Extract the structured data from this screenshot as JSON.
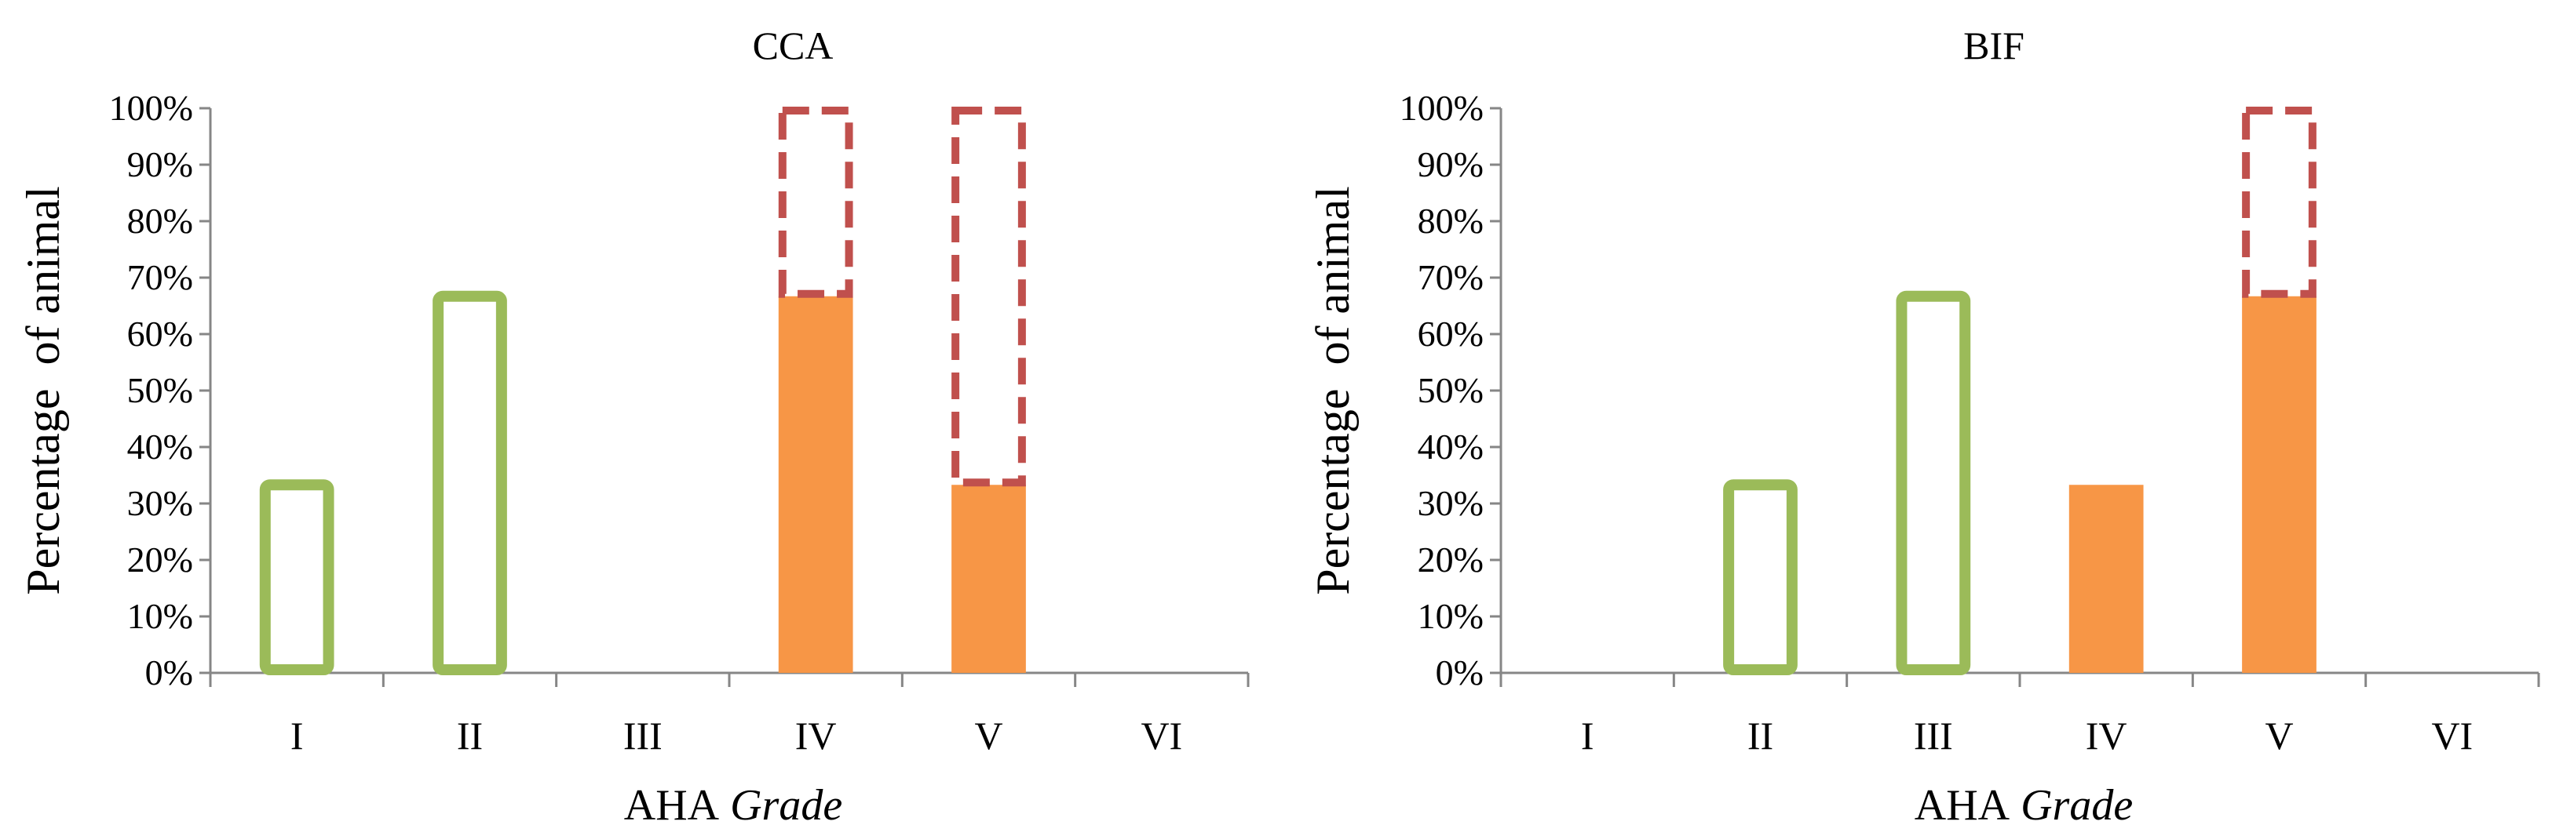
{
  "colors": {
    "green_outline": "#9BBB59",
    "orange_fill": "#F79646",
    "red_dashed": "#C0504D",
    "axis": "#868686"
  },
  "chart_data": [
    {
      "type": "bar",
      "title": "CCA",
      "xlabel_main": "AHA",
      "xlabel_italic": "Grade",
      "ylabel": "Percentage  of animal",
      "categories": [
        "I",
        "II",
        "III",
        "IV",
        "V",
        "VI"
      ],
      "ylim": [
        0,
        100
      ],
      "yticks": [
        "0%",
        "10%",
        "20%",
        "30%",
        "40%",
        "50%",
        "60%",
        "70%",
        "80%",
        "90%",
        "100%"
      ],
      "series": [
        {
          "style": "green-outline",
          "values": [
            33.3,
            66.7,
            0,
            0,
            0,
            0
          ]
        },
        {
          "style": "orange-filled",
          "values": [
            0,
            0,
            0,
            66.7,
            33.3,
            0
          ]
        },
        {
          "style": "red-dashed-stacked",
          "values": [
            0,
            0,
            0,
            33.3,
            66.7,
            0
          ]
        }
      ],
      "grid": false
    },
    {
      "type": "bar",
      "title": "BIF",
      "xlabel_main": "AHA",
      "xlabel_italic": "Grade",
      "ylabel": "Percentage  of animal",
      "categories": [
        "I",
        "II",
        "III",
        "IV",
        "V",
        "VI"
      ],
      "ylim": [
        0,
        100
      ],
      "yticks": [
        "0%",
        "10%",
        "20%",
        "30%",
        "40%",
        "50%",
        "60%",
        "70%",
        "80%",
        "90%",
        "100%"
      ],
      "series": [
        {
          "style": "green-outline",
          "values": [
            0,
            33.3,
            66.7,
            0,
            0,
            0
          ]
        },
        {
          "style": "orange-filled",
          "values": [
            0,
            0,
            0,
            33.3,
            66.7,
            0
          ]
        },
        {
          "style": "red-dashed-stacked",
          "values": [
            0,
            0,
            0,
            0,
            33.3,
            0
          ]
        }
      ],
      "grid": false
    }
  ]
}
